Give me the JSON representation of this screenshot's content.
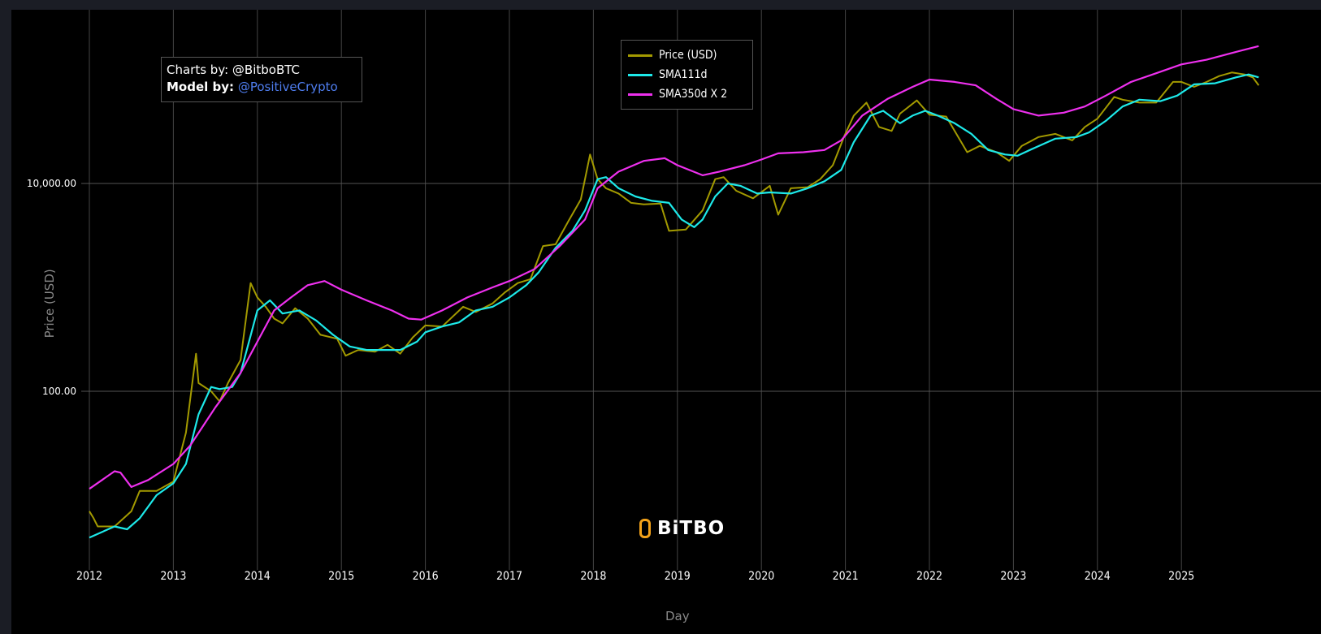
{
  "annotation": {
    "charts_by_label": "Charts by: @BitboBTC",
    "model_by_label": "Model by:",
    "model_by_handle": "@PositiveCrypto"
  },
  "watermark": "BiTBO",
  "colors": {
    "price": "#a39a00",
    "sma111": "#1de9e9",
    "sma350x2": "#ee30ee",
    "background": "#000000",
    "grid": "#444444",
    "link": "#4f7ef0"
  },
  "chart_data": {
    "type": "line",
    "title": "",
    "xlabel": "Day",
    "ylabel": "Price (USD)",
    "yscale": "log",
    "ylim": [
      2,
      400000
    ],
    "xlim": [
      2012,
      2026.1
    ],
    "grid": true,
    "legend_position": "top-center",
    "x_ticks": [
      "2012",
      "2013",
      "2014",
      "2015",
      "2016",
      "2017",
      "2018",
      "2019",
      "2020",
      "2021",
      "2022",
      "2023",
      "2024",
      "2025"
    ],
    "y_ticks": [
      {
        "value": 100,
        "label": "100.00"
      },
      {
        "value": 10000,
        "label": "10,000.00"
      }
    ],
    "series": [
      {
        "name": "Price (USD)",
        "color": "#a39a00",
        "points": [
          [
            2012.0,
            7
          ],
          [
            2012.05,
            6
          ],
          [
            2012.1,
            5
          ],
          [
            2012.3,
            5
          ],
          [
            2012.5,
            7
          ],
          [
            2012.6,
            11
          ],
          [
            2012.8,
            11
          ],
          [
            2013.0,
            13.5
          ],
          [
            2013.15,
            40
          ],
          [
            2013.27,
            230
          ],
          [
            2013.3,
            120
          ],
          [
            2013.45,
            100
          ],
          [
            2013.55,
            80
          ],
          [
            2013.65,
            120
          ],
          [
            2013.8,
            200
          ],
          [
            2013.92,
            1100
          ],
          [
            2014.0,
            800
          ],
          [
            2014.1,
            650
          ],
          [
            2014.2,
            500
          ],
          [
            2014.3,
            450
          ],
          [
            2014.45,
            630
          ],
          [
            2014.6,
            500
          ],
          [
            2014.75,
            350
          ],
          [
            2014.95,
            320
          ],
          [
            2015.05,
            220
          ],
          [
            2015.2,
            250
          ],
          [
            2015.4,
            240
          ],
          [
            2015.55,
            280
          ],
          [
            2015.7,
            230
          ],
          [
            2015.85,
            330
          ],
          [
            2016.0,
            430
          ],
          [
            2016.2,
            420
          ],
          [
            2016.45,
            650
          ],
          [
            2016.6,
            580
          ],
          [
            2016.8,
            700
          ],
          [
            2016.95,
            900
          ],
          [
            2017.1,
            1100
          ],
          [
            2017.25,
            1200
          ],
          [
            2017.4,
            2500
          ],
          [
            2017.55,
            2600
          ],
          [
            2017.7,
            4300
          ],
          [
            2017.85,
            7000
          ],
          [
            2017.96,
            19000
          ],
          [
            2018.05,
            11000
          ],
          [
            2018.15,
            9000
          ],
          [
            2018.3,
            8000
          ],
          [
            2018.45,
            6500
          ],
          [
            2018.6,
            6300
          ],
          [
            2018.8,
            6400
          ],
          [
            2018.9,
            3500
          ],
          [
            2019.1,
            3600
          ],
          [
            2019.3,
            5500
          ],
          [
            2019.45,
            11000
          ],
          [
            2019.55,
            11500
          ],
          [
            2019.7,
            8500
          ],
          [
            2019.9,
            7200
          ],
          [
            2020.1,
            9500
          ],
          [
            2020.2,
            5000
          ],
          [
            2020.35,
            9000
          ],
          [
            2020.55,
            9200
          ],
          [
            2020.7,
            11000
          ],
          [
            2020.85,
            15000
          ],
          [
            2020.99,
            29000
          ],
          [
            2021.1,
            45000
          ],
          [
            2021.25,
            60000
          ],
          [
            2021.4,
            35000
          ],
          [
            2021.55,
            32000
          ],
          [
            2021.65,
            47000
          ],
          [
            2021.85,
            63000
          ],
          [
            2022.0,
            46000
          ],
          [
            2022.2,
            44000
          ],
          [
            2022.45,
            20000
          ],
          [
            2022.6,
            23000
          ],
          [
            2022.8,
            20000
          ],
          [
            2022.95,
            16500
          ],
          [
            2023.1,
            23000
          ],
          [
            2023.3,
            28000
          ],
          [
            2023.5,
            30000
          ],
          [
            2023.7,
            26000
          ],
          [
            2023.85,
            35000
          ],
          [
            2024.0,
            42000
          ],
          [
            2024.2,
            68000
          ],
          [
            2024.3,
            64000
          ],
          [
            2024.5,
            60000
          ],
          [
            2024.7,
            60000
          ],
          [
            2024.9,
            95000
          ],
          [
            2025.0,
            95000
          ],
          [
            2025.15,
            85000
          ],
          [
            2025.3,
            95000
          ],
          [
            2025.45,
            108000
          ],
          [
            2025.6,
            117000
          ],
          [
            2025.75,
            112000
          ],
          [
            2025.85,
            105000
          ],
          [
            2025.92,
            88000
          ]
        ]
      },
      {
        "name": "SMA111d",
        "color": "#1de9e9",
        "points": [
          [
            2012.0,
            3.9
          ],
          [
            2012.3,
            5
          ],
          [
            2012.45,
            4.7
          ],
          [
            2012.6,
            6
          ],
          [
            2012.8,
            10
          ],
          [
            2013.0,
            13
          ],
          [
            2013.15,
            20
          ],
          [
            2013.3,
            60
          ],
          [
            2013.45,
            110
          ],
          [
            2013.55,
            105
          ],
          [
            2013.7,
            110
          ],
          [
            2013.8,
            150
          ],
          [
            2013.9,
            300
          ],
          [
            2014.0,
            600
          ],
          [
            2014.15,
            750
          ],
          [
            2014.3,
            560
          ],
          [
            2014.5,
            600
          ],
          [
            2014.7,
            480
          ],
          [
            2014.9,
            350
          ],
          [
            2015.1,
            270
          ],
          [
            2015.3,
            250
          ],
          [
            2015.5,
            250
          ],
          [
            2015.7,
            250
          ],
          [
            2015.9,
            300
          ],
          [
            2016.0,
            370
          ],
          [
            2016.2,
            420
          ],
          [
            2016.4,
            460
          ],
          [
            2016.6,
            600
          ],
          [
            2016.8,
            650
          ],
          [
            2017.0,
            800
          ],
          [
            2017.2,
            1050
          ],
          [
            2017.35,
            1400
          ],
          [
            2017.55,
            2400
          ],
          [
            2017.75,
            3500
          ],
          [
            2017.9,
            5500
          ],
          [
            2018.05,
            11000
          ],
          [
            2018.15,
            11500
          ],
          [
            2018.3,
            9000
          ],
          [
            2018.5,
            7500
          ],
          [
            2018.7,
            6800
          ],
          [
            2018.9,
            6500
          ],
          [
            2019.05,
            4500
          ],
          [
            2019.2,
            3800
          ],
          [
            2019.3,
            4500
          ],
          [
            2019.45,
            7500
          ],
          [
            2019.6,
            10000
          ],
          [
            2019.75,
            9500
          ],
          [
            2019.95,
            8000
          ],
          [
            2020.1,
            8200
          ],
          [
            2020.35,
            8000
          ],
          [
            2020.55,
            9000
          ],
          [
            2020.75,
            10500
          ],
          [
            2020.95,
            13500
          ],
          [
            2021.1,
            25000
          ],
          [
            2021.3,
            45000
          ],
          [
            2021.45,
            50000
          ],
          [
            2021.65,
            38000
          ],
          [
            2021.8,
            45000
          ],
          [
            2021.95,
            50000
          ],
          [
            2022.1,
            45000
          ],
          [
            2022.3,
            38000
          ],
          [
            2022.5,
            30000
          ],
          [
            2022.7,
            21000
          ],
          [
            2022.9,
            19000
          ],
          [
            2023.05,
            18500
          ],
          [
            2023.25,
            22000
          ],
          [
            2023.5,
            27000
          ],
          [
            2023.75,
            28000
          ],
          [
            2023.9,
            31000
          ],
          [
            2024.1,
            40000
          ],
          [
            2024.3,
            55000
          ],
          [
            2024.5,
            64000
          ],
          [
            2024.75,
            62000
          ],
          [
            2024.95,
            70000
          ],
          [
            2025.15,
            90000
          ],
          [
            2025.4,
            92000
          ],
          [
            2025.65,
            105000
          ],
          [
            2025.8,
            112000
          ],
          [
            2025.92,
            105000
          ]
        ]
      },
      {
        "name": "SMA350d X 2",
        "color": "#ee30ee",
        "points": [
          [
            2012.0,
            11.5
          ],
          [
            2012.3,
            17
          ],
          [
            2012.37,
            16.5
          ],
          [
            2012.5,
            12
          ],
          [
            2012.7,
            14
          ],
          [
            2013.0,
            20
          ],
          [
            2013.2,
            30
          ],
          [
            2013.5,
            70
          ],
          [
            2013.8,
            150
          ],
          [
            2014.0,
            300
          ],
          [
            2014.2,
            600
          ],
          [
            2014.4,
            800
          ],
          [
            2014.6,
            1050
          ],
          [
            2014.8,
            1150
          ],
          [
            2015.0,
            950
          ],
          [
            2015.3,
            750
          ],
          [
            2015.6,
            600
          ],
          [
            2015.8,
            500
          ],
          [
            2015.95,
            490
          ],
          [
            2016.2,
            600
          ],
          [
            2016.5,
            800
          ],
          [
            2016.8,
            1000
          ],
          [
            2017.0,
            1150
          ],
          [
            2017.3,
            1500
          ],
          [
            2017.6,
            2500
          ],
          [
            2017.9,
            4500
          ],
          [
            2018.05,
            9000
          ],
          [
            2018.3,
            13000
          ],
          [
            2018.6,
            16500
          ],
          [
            2018.85,
            17500
          ],
          [
            2019.0,
            15000
          ],
          [
            2019.3,
            12000
          ],
          [
            2019.5,
            13000
          ],
          [
            2019.8,
            15000
          ],
          [
            2020.0,
            17000
          ],
          [
            2020.2,
            19500
          ],
          [
            2020.5,
            20000
          ],
          [
            2020.75,
            21000
          ],
          [
            2020.95,
            26000
          ],
          [
            2021.2,
            45000
          ],
          [
            2021.5,
            65000
          ],
          [
            2021.8,
            85000
          ],
          [
            2022.0,
            100000
          ],
          [
            2022.3,
            95000
          ],
          [
            2022.55,
            88000
          ],
          [
            2022.8,
            65000
          ],
          [
            2023.0,
            52000
          ],
          [
            2023.3,
            45000
          ],
          [
            2023.6,
            48000
          ],
          [
            2023.85,
            55000
          ],
          [
            2024.1,
            70000
          ],
          [
            2024.4,
            95000
          ],
          [
            2024.7,
            115000
          ],
          [
            2025.0,
            140000
          ],
          [
            2025.3,
            155000
          ],
          [
            2025.6,
            180000
          ],
          [
            2025.92,
            210000
          ]
        ]
      }
    ]
  }
}
